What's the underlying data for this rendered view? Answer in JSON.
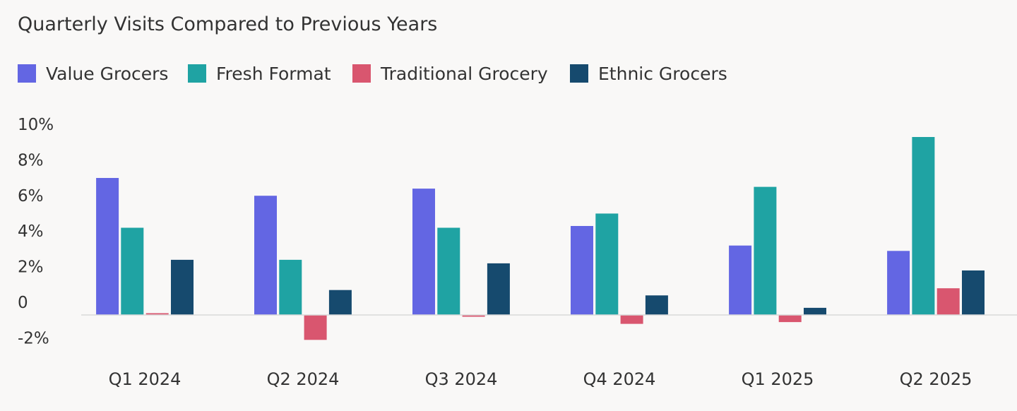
{
  "chart_data": {
    "type": "bar",
    "title": "Quarterly Visits Compared to Previous Years",
    "xlabel": "",
    "ylabel": "",
    "categories": [
      "Q1 2024",
      "Q2 2024",
      "Q3 2024",
      "Q4 2024",
      "Q1 2025",
      "Q2 2025"
    ],
    "series": [
      {
        "name": "Value Grocers",
        "color": "#6366e3",
        "values": [
          7.7,
          6.7,
          7.1,
          5.0,
          3.9,
          3.6
        ]
      },
      {
        "name": "Fresh Format",
        "color": "#1fa3a3",
        "values": [
          4.9,
          3.1,
          4.9,
          5.7,
          7.2,
          10.0
        ]
      },
      {
        "name": "Traditional Grocery",
        "color": "#d9566f",
        "values": [
          0.1,
          -1.4,
          -0.1,
          -0.5,
          -0.4,
          1.5
        ]
      },
      {
        "name": "Ethnic Grocers",
        "color": "#164a6e",
        "values": [
          3.1,
          1.4,
          2.9,
          1.1,
          0.4,
          2.5
        ]
      }
    ],
    "y_ticks": [
      {
        "value": 10,
        "label": "10%"
      },
      {
        "value": 8,
        "label": "8%"
      },
      {
        "value": 6,
        "label": "6%"
      },
      {
        "value": 4,
        "label": "4%"
      },
      {
        "value": 2,
        "label": "2%"
      },
      {
        "value": 0,
        "label": "0"
      },
      {
        "value": -2,
        "label": "-2%"
      }
    ],
    "ylim": [
      -2,
      10
    ],
    "grid": false,
    "legend_position": "top-left"
  }
}
